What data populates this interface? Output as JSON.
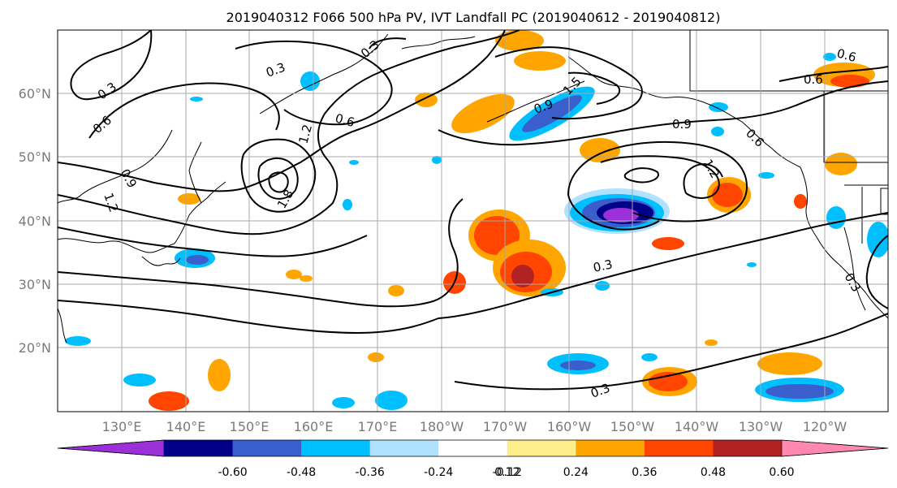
{
  "title": "2019040312 F066 500 hPa PV, IVT Landfall PC (2019040612 - 2019040812)",
  "map": {
    "lat_ticks": [
      "60°N",
      "50°N",
      "40°N",
      "30°N",
      "20°N"
    ],
    "lon_ticks": [
      "130°E",
      "140°E",
      "150°E",
      "160°E",
      "170°E",
      "180°W",
      "170°W",
      "160°W",
      "150°W",
      "140°W",
      "130°W",
      "120°W"
    ],
    "lon_range": [
      120,
      250
    ],
    "lat_range": [
      10,
      70
    ]
  },
  "colorbar": {
    "levels": [
      "-0.60",
      "-0.48",
      "-0.36",
      "-0.24",
      "-0.12",
      "0.12",
      "0.24",
      "0.36",
      "0.48",
      "0.60"
    ],
    "colors": [
      "#9b30d9",
      "#00008b",
      "#3a5fcd",
      "#00bfff",
      "#b0e2ff",
      "#ffffff",
      "#ffec8b",
      "#ffa500",
      "#ff4500",
      "#b22222",
      "#ff88b0"
    ],
    "extend": "both"
  },
  "contour_labels": [
    "0.3",
    "0.3",
    "0.3",
    "0.6",
    "0.6",
    "0.9",
    "0.9",
    "1.2",
    "1.2",
    "1.5",
    "1.8",
    "0.3",
    "0.6",
    "0.6",
    "0.3",
    "0.3",
    "0.9",
    "1.2",
    "0.6"
  ]
}
